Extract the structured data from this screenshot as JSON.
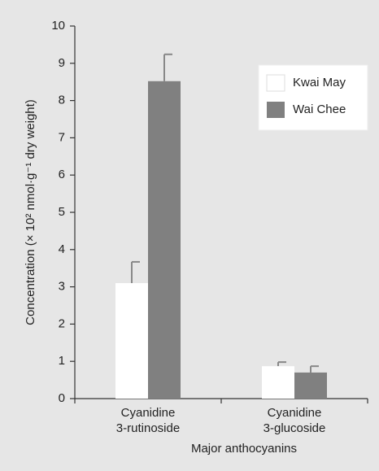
{
  "chart_data": {
    "type": "bar",
    "xlabel": "Major anthocyanins",
    "ylabel": "Concentration (× 10² nmol·g⁻¹ dry weight)",
    "categories": [
      [
        "Cyanidine",
        "3-rutinoside"
      ],
      [
        "Cyanidine",
        "3-glucoside"
      ]
    ],
    "series": [
      {
        "name": "Kwai May",
        "color": "#ffffff",
        "values": [
          3.1,
          0.87
        ],
        "errors": [
          0.57,
          0.11
        ]
      },
      {
        "name": "Wai Chee",
        "color": "#808080",
        "values": [
          8.52,
          0.7
        ],
        "errors": [
          0.72,
          0.17
        ]
      }
    ],
    "ylim": [
      0,
      10
    ],
    "yticks": [
      0,
      1,
      2,
      3,
      4,
      5,
      6,
      7,
      8,
      9,
      10
    ],
    "legend": "upper right"
  }
}
